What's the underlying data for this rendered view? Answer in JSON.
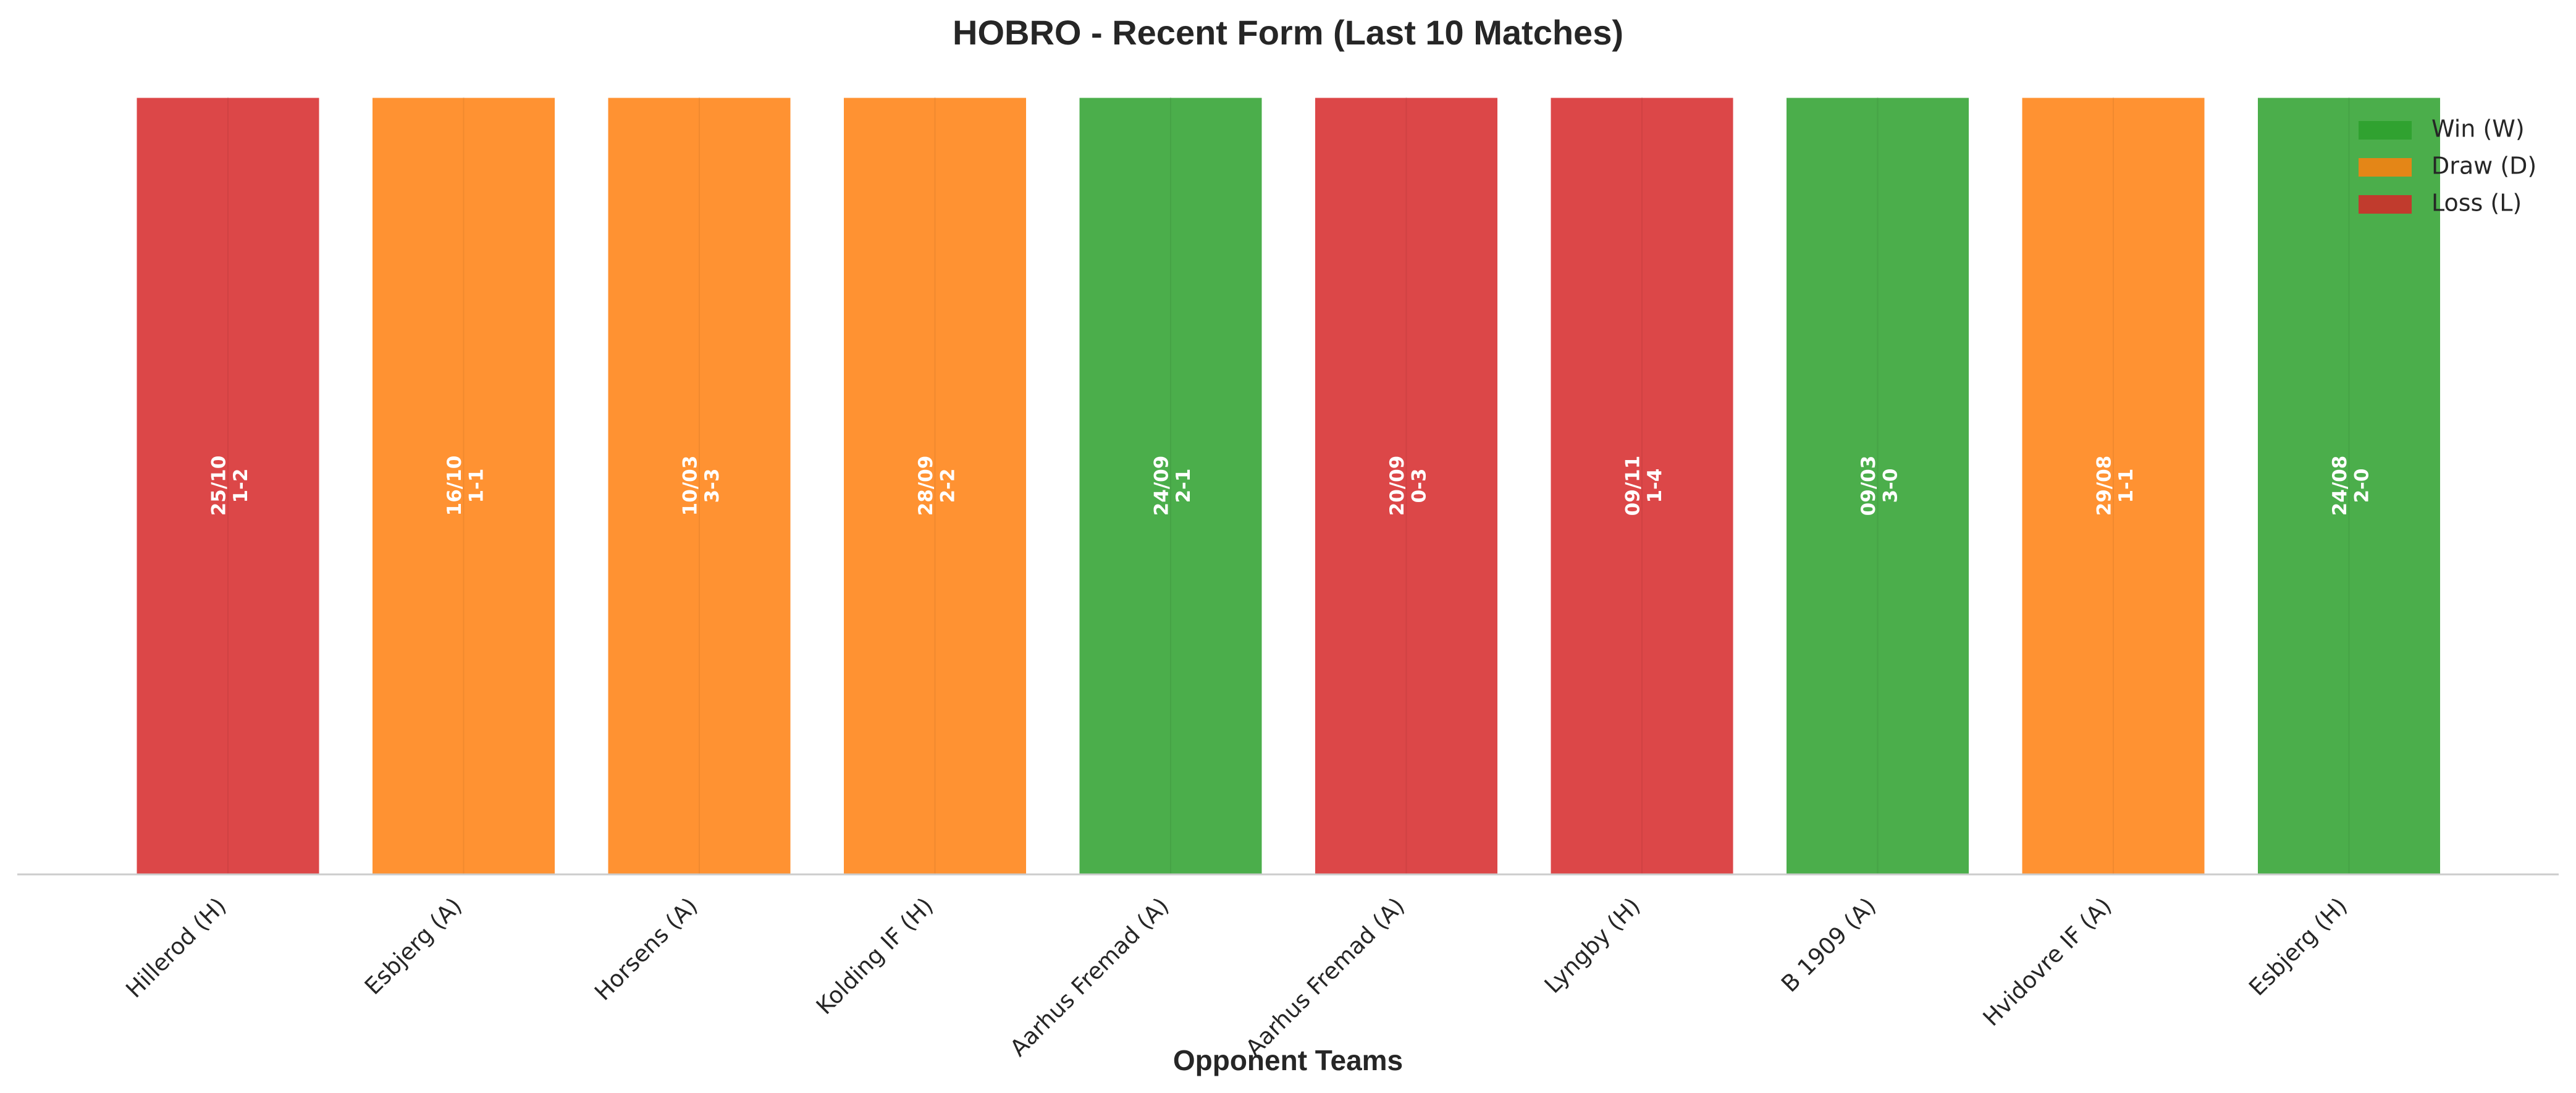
{
  "chart_data": {
    "type": "bar",
    "title": "HOBRO - Recent Form (Last 10 Matches)",
    "xlabel": "Opponent Teams",
    "ylabel": "",
    "ylim": [
      0,
      1
    ],
    "grid": false,
    "legend_position": "top-right",
    "categories": [
      "Hillerod (H)",
      "Esbjerg (A)",
      "Horsens (A)",
      "Kolding IF (H)",
      "Aarhus Fremad (A)",
      "Aarhus Fremad (A)",
      "Lyngby (H)",
      "B 1909 (A)",
      "Hvidovre IF (A)",
      "Esbjerg (H)"
    ],
    "values": [
      1,
      1,
      1,
      1,
      1,
      1,
      1,
      1,
      1,
      1
    ],
    "results": [
      "L",
      "D",
      "D",
      "D",
      "W",
      "L",
      "L",
      "W",
      "D",
      "W"
    ],
    "dates": [
      "25/10",
      "16/10",
      "10/03",
      "28/09",
      "24/09",
      "20/09",
      "09/11",
      "09/03",
      "29/08",
      "24/08"
    ],
    "scores": [
      "1-2",
      "1-1",
      "3-3",
      "2-2",
      "2-1",
      "0-3",
      "1-4",
      "3-0",
      "1-1",
      "2-0"
    ],
    "legend": [
      {
        "key": "W",
        "label": "Win (W)",
        "color": "#2ca02c"
      },
      {
        "key": "D",
        "label": "Draw (D)",
        "color": "#ff7f0e"
      },
      {
        "key": "L",
        "label": "Loss (L)",
        "color": "#d62728"
      }
    ]
  }
}
